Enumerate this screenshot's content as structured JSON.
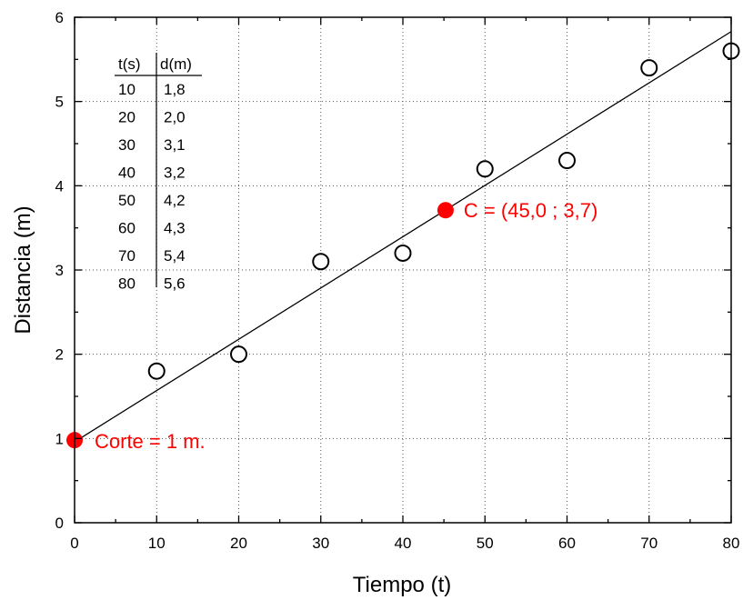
{
  "chart_data": {
    "type": "scatter",
    "xlabel": "Tiempo (t)",
    "ylabel": "Distancia (m)",
    "xlim": [
      0,
      80
    ],
    "ylim": [
      0,
      6
    ],
    "x_ticks": [
      0,
      10,
      20,
      30,
      40,
      50,
      60,
      70,
      80
    ],
    "y_ticks": [
      0,
      1,
      2,
      3,
      4,
      5,
      6
    ],
    "grid": true,
    "series": [
      {
        "marker": "open-circle",
        "color": "#000000",
        "x": [
          10,
          20,
          30,
          40,
          50,
          60,
          70,
          80
        ],
        "y": [
          1.8,
          2.0,
          3.1,
          3.2,
          4.2,
          4.3,
          5.4,
          5.6
        ]
      }
    ],
    "fit_line": {
      "color": "#000000",
      "x": [
        0,
        80
      ],
      "y": [
        0.96,
        5.83
      ]
    },
    "highlighted_points": [
      {
        "x": 0,
        "y": 0.98,
        "color": "#ff0000",
        "label": "Corte = 1 m."
      },
      {
        "x": 45.2,
        "y": 3.71,
        "color": "#ff0000",
        "label": "C = (45,0 ; 3,7)"
      }
    ],
    "inset_table": {
      "headers": [
        "t(s)",
        "d(m)"
      ],
      "rows": [
        [
          "10",
          "1,8"
        ],
        [
          "20",
          "2,0"
        ],
        [
          "30",
          "3,1"
        ],
        [
          "40",
          "3,2"
        ],
        [
          "50",
          "4,2"
        ],
        [
          "60",
          "4,3"
        ],
        [
          "70",
          "5,4"
        ],
        [
          "80",
          "5,6"
        ]
      ]
    }
  }
}
